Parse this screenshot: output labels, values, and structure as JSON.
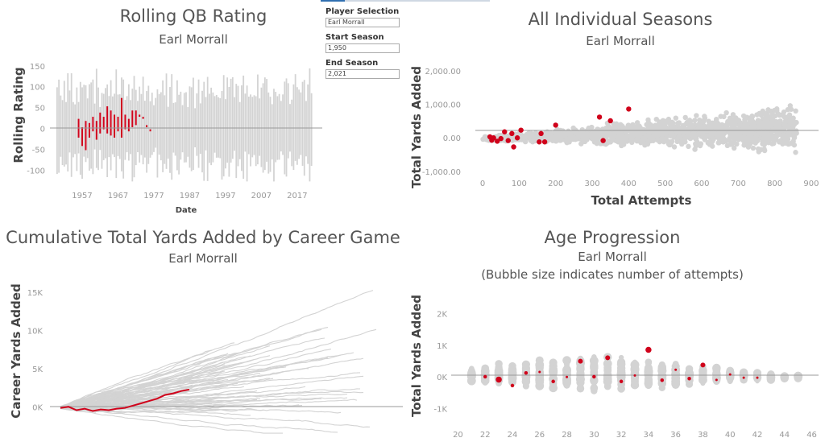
{
  "accent_color": "#d0021b",
  "gray_color": "#d3d3d3",
  "controls": {
    "player_label": "Player Selection",
    "player_value": "Earl Morrall",
    "start_label": "Start Season",
    "start_value": "1,950",
    "end_label": "End Season",
    "end_value": "2,021"
  },
  "charts": {
    "rolling": {
      "title": "Rolling QB Rating",
      "subtitle": "Earl Morrall",
      "ylabel": "Rolling Rating",
      "xlabel": "Date",
      "yticks": [
        "150",
        "100",
        "50",
        "0",
        "-50",
        "-100"
      ],
      "xticks": [
        "1957",
        "1967",
        "1977",
        "1987",
        "1997",
        "2007",
        "2017"
      ]
    },
    "seasons": {
      "title": "All Individual Seasons",
      "subtitle": "Earl Morrall",
      "ylabel": "Total Yards Added",
      "xlabel": "Total Attempts",
      "yticks": [
        "2,000.00",
        "1,000.00",
        "0.00",
        "-1,000.00"
      ],
      "xticks": [
        "0",
        "100",
        "200",
        "300",
        "400",
        "500",
        "600",
        "700",
        "800",
        "900"
      ]
    },
    "cumulative": {
      "title": "Cumulative Total Yards Added by Career Game",
      "subtitle": "Earl Morrall",
      "ylabel": "Career Yards Added",
      "yticks": [
        "15K",
        "10K",
        "5K",
        "0K"
      ]
    },
    "age": {
      "title": "Age Progression",
      "subtitle": "Earl Morrall",
      "subtitle2": "(Bubble size indicates number of attempts)",
      "ylabel": "Total Yards Added",
      "yticks": [
        "2K",
        "1K",
        "0K",
        "-1K"
      ],
      "xticks": [
        "20",
        "22",
        "24",
        "26",
        "28",
        "30",
        "32",
        "34",
        "36",
        "38",
        "40",
        "42",
        "44",
        "46"
      ]
    }
  },
  "chart_data": [
    {
      "type": "bar",
      "title": "Rolling QB Rating",
      "subtitle": "Earl Morrall",
      "xlabel": "Date",
      "ylabel": "Rolling Rating",
      "ylim": [
        -130,
        165
      ],
      "xlim": [
        1948,
        2024
      ],
      "highlight_series": {
        "name": "Earl Morrall",
        "points": [
          {
            "x": 1956,
            "lo": -20,
            "hi": 25
          },
          {
            "x": 1957,
            "lo": -40,
            "hi": 5
          },
          {
            "x": 1958,
            "lo": -50,
            "hi": 20
          },
          {
            "x": 1959,
            "lo": -20,
            "hi": 15
          },
          {
            "x": 1960,
            "lo": -5,
            "hi": 30
          },
          {
            "x": 1961,
            "lo": -25,
            "hi": 20
          },
          {
            "x": 1962,
            "lo": -10,
            "hi": 40
          },
          {
            "x": 1963,
            "lo": 0,
            "hi": 30
          },
          {
            "x": 1964,
            "lo": -10,
            "hi": 55
          },
          {
            "x": 1965,
            "lo": -15,
            "hi": 45
          },
          {
            "x": 1966,
            "lo": -20,
            "hi": 35
          },
          {
            "x": 1967,
            "lo": -5,
            "hi": 30
          },
          {
            "x": 1968,
            "lo": -20,
            "hi": 75
          },
          {
            "x": 1969,
            "lo": 0,
            "hi": 35
          },
          {
            "x": 1970,
            "lo": -5,
            "hi": 25
          },
          {
            "x": 1971,
            "lo": 5,
            "hi": 45
          },
          {
            "x": 1972,
            "lo": 10,
            "hi": 45
          },
          {
            "x": 1973,
            "lo": 30,
            "hi": 35
          },
          {
            "x": 1974,
            "lo": 25,
            "hi": 30
          },
          {
            "x": 1975,
            "lo": 5,
            "hi": 10
          },
          {
            "x": 1976,
            "lo": -5,
            "hi": 0
          }
        ]
      }
    },
    {
      "type": "scatter",
      "title": "All Individual Seasons",
      "subtitle": "Earl Morrall",
      "xlabel": "Total Attempts",
      "ylabel": "Total Yards Added",
      "xlim": [
        -20,
        920
      ],
      "ylim": [
        -1150,
        2450
      ],
      "highlight_series": {
        "name": "Earl Morrall",
        "points": [
          {
            "x": 20,
            "y": 50
          },
          {
            "x": 25,
            "y": -50
          },
          {
            "x": 30,
            "y": 20
          },
          {
            "x": 40,
            "y": -80
          },
          {
            "x": 50,
            "y": 0
          },
          {
            "x": 60,
            "y": 200
          },
          {
            "x": 70,
            "y": -60
          },
          {
            "x": 80,
            "y": 150
          },
          {
            "x": 85,
            "y": -250
          },
          {
            "x": 95,
            "y": 20
          },
          {
            "x": 105,
            "y": 250
          },
          {
            "x": 155,
            "y": -100
          },
          {
            "x": 160,
            "y": 150
          },
          {
            "x": 170,
            "y": -100
          },
          {
            "x": 200,
            "y": 400
          },
          {
            "x": 320,
            "y": 640
          },
          {
            "x": 330,
            "y": -60
          },
          {
            "x": 350,
            "y": 530
          },
          {
            "x": 400,
            "y": 880
          }
        ]
      }
    },
    {
      "type": "line",
      "title": "Cumulative Total Yards Added by Career Game",
      "subtitle": "Earl Morrall",
      "ylabel": "Career Yards Added",
      "ylim": [
        -3500,
        17500
      ],
      "highlight_series": {
        "name": "Earl Morrall",
        "x": [
          0,
          10,
          20,
          30,
          40,
          50,
          60,
          70,
          80,
          90,
          100,
          110,
          120,
          130,
          140,
          150,
          160
        ],
        "y": [
          0,
          150,
          -300,
          -100,
          -400,
          -200,
          -300,
          -100,
          0,
          300,
          600,
          900,
          1200,
          1700,
          1900,
          2200,
          2400
        ]
      }
    },
    {
      "type": "scatter",
      "title": "Age Progression",
      "subtitle": "Earl Morrall",
      "ylabel": "Total Yards Added",
      "xlim": [
        19.5,
        46.5
      ],
      "ylim": [
        -1500,
        2650
      ],
      "highlight_series": {
        "name": "Earl Morrall",
        "points": [
          {
            "x": 22,
            "y": 30,
            "size": 3
          },
          {
            "x": 23,
            "y": -60,
            "size": 5
          },
          {
            "x": 24,
            "y": -250,
            "size": 3
          },
          {
            "x": 25,
            "y": 150,
            "size": 3
          },
          {
            "x": 26,
            "y": 180,
            "size": 2
          },
          {
            "x": 27,
            "y": -120,
            "size": 3
          },
          {
            "x": 28,
            "y": 20,
            "size": 2
          },
          {
            "x": 29,
            "y": 520,
            "size": 4
          },
          {
            "x": 30,
            "y": 30,
            "size": 3
          },
          {
            "x": 31,
            "y": 630,
            "size": 4
          },
          {
            "x": 32,
            "y": -120,
            "size": 3
          },
          {
            "x": 33,
            "y": 70,
            "size": 2
          },
          {
            "x": 34,
            "y": 880,
            "size": 5
          },
          {
            "x": 35,
            "y": -80,
            "size": 3
          },
          {
            "x": 36,
            "y": 250,
            "size": 2
          },
          {
            "x": 37,
            "y": -30,
            "size": 3
          },
          {
            "x": 38,
            "y": 400,
            "size": 4
          },
          {
            "x": 39,
            "y": -70,
            "size": 2
          },
          {
            "x": 40,
            "y": 100,
            "size": 2
          },
          {
            "x": 41,
            "y": 0,
            "size": 2
          },
          {
            "x": 42,
            "y": 0,
            "size": 2
          }
        ]
      }
    }
  ]
}
